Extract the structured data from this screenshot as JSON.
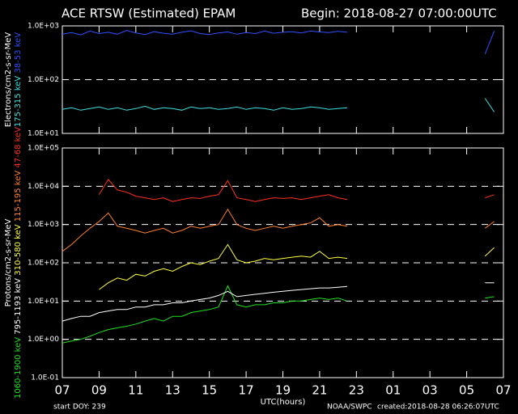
{
  "header": {
    "title": "ACE RTSW (Estimated) EPAM",
    "begin": "Begin: 2018-08-27 07:00:00UTC"
  },
  "footer": {
    "start": "start DOY: 239",
    "source": "NOAA/SWPC",
    "created": "created:2018-08-28 06:26:07UTC"
  },
  "chart_data": [
    {
      "type": "line",
      "y_label": "Electrons/cm2-s-sr-MeV",
      "log_y": true,
      "grid": true,
      "x": [
        0,
        0.5,
        1,
        1.5,
        2,
        2.5,
        3,
        3.5,
        4,
        4.5,
        5,
        5.5,
        6,
        6.5,
        7,
        7.5,
        8,
        8.5,
        9,
        9.5,
        10,
        10.5,
        11,
        11.5,
        12,
        12.5,
        13,
        13.5,
        14,
        14.5,
        15,
        15.5,
        19,
        23,
        23.5
      ],
      "xlim": [
        0,
        24
      ],
      "xticks": [
        {
          "value": 0,
          "label": "07"
        },
        {
          "value": 2,
          "label": "09"
        },
        {
          "value": 4,
          "label": "11"
        },
        {
          "value": 6,
          "label": "13"
        },
        {
          "value": 8,
          "label": "15"
        },
        {
          "value": 10,
          "label": "17"
        },
        {
          "value": 12,
          "label": "19"
        },
        {
          "value": 14,
          "label": "21"
        },
        {
          "value": 16,
          "label": "23"
        },
        {
          "value": 18,
          "label": "01"
        },
        {
          "value": 20,
          "label": "03"
        },
        {
          "value": 22,
          "label": "05"
        },
        {
          "value": 24,
          "label": "07"
        }
      ],
      "ylim": [
        10,
        1000
      ],
      "yticks": [
        {
          "value": 10,
          "label": "1.0E+01"
        },
        {
          "value": 100,
          "label": "1.0E+02"
        },
        {
          "value": 1000,
          "label": "1.0E+03"
        }
      ],
      "series": [
        {
          "name": "175-315 keV",
          "color": "#40e0e0",
          "values": [
            28,
            30,
            27,
            29,
            31,
            28,
            30,
            27,
            29,
            32,
            28,
            30,
            29,
            27,
            31,
            29,
            30,
            28,
            29,
            31,
            28,
            30,
            29,
            27,
            30,
            28,
            29,
            31,
            30,
            28,
            29,
            30,
            null,
            45,
            25
          ]
        },
        {
          "name": "38-53 keV",
          "color": "#3050ff",
          "values": [
            700,
            750,
            680,
            800,
            720,
            760,
            700,
            820,
            740,
            690,
            780,
            730,
            700,
            760,
            810,
            720,
            690,
            740,
            770,
            700,
            750,
            720,
            800,
            730,
            760,
            780,
            740,
            800,
            770,
            750,
            790,
            760,
            null,
            300,
            800
          ]
        }
      ]
    },
    {
      "type": "line",
      "y_label": "Protons/cm2-s-sr-MeV",
      "x_label": "UTC(hours)",
      "log_y": true,
      "grid": true,
      "x": [
        0,
        0.5,
        1,
        1.5,
        2,
        2.5,
        3,
        3.5,
        4,
        4.5,
        5,
        5.5,
        6,
        6.5,
        7,
        7.5,
        8,
        8.5,
        9,
        9.5,
        10,
        10.5,
        11,
        11.5,
        12,
        12.5,
        13,
        13.5,
        14,
        14.5,
        15,
        15.5,
        19,
        23,
        23.5
      ],
      "xlim": [
        0,
        24
      ],
      "xticks": [
        {
          "value": 0,
          "label": "07"
        },
        {
          "value": 2,
          "label": "09"
        },
        {
          "value": 4,
          "label": "11"
        },
        {
          "value": 6,
          "label": "13"
        },
        {
          "value": 8,
          "label": "15"
        },
        {
          "value": 10,
          "label": "17"
        },
        {
          "value": 12,
          "label": "19"
        },
        {
          "value": 14,
          "label": "21"
        },
        {
          "value": 16,
          "label": "23"
        },
        {
          "value": 18,
          "label": "01"
        },
        {
          "value": 20,
          "label": "03"
        },
        {
          "value": 22,
          "label": "05"
        },
        {
          "value": 24,
          "label": "07"
        }
      ],
      "ylim": [
        0.1,
        100000
      ],
      "yticks": [
        {
          "value": 0.1,
          "label": "1.0E-01"
        },
        {
          "value": 1,
          "label": "1.0E+00"
        },
        {
          "value": 10,
          "label": "1.0E+01"
        },
        {
          "value": 100,
          "label": "1.0E+02"
        },
        {
          "value": 1000,
          "label": "1.0E+03"
        },
        {
          "value": 10000,
          "label": "1.0E+04"
        },
        {
          "value": 100000,
          "label": "1.0E+05"
        }
      ],
      "series": [
        {
          "name": "1060-1900 keV",
          "color": "#20e020",
          "values": [
            0.8,
            0.9,
            1,
            1.2,
            1.5,
            1.8,
            2,
            2.2,
            2.5,
            3,
            3.5,
            3,
            4,
            4,
            5,
            5.5,
            6,
            7,
            25,
            8,
            7,
            8,
            8,
            9,
            9,
            10,
            10,
            11,
            12,
            11,
            12,
            10,
            null,
            12,
            13
          ]
        },
        {
          "name": "795-1193 keV",
          "color": "#ffffff",
          "values": [
            3,
            3.5,
            4,
            4,
            5,
            5.5,
            6,
            6,
            7,
            7,
            8,
            8,
            9,
            9,
            10,
            11,
            12,
            14,
            18,
            13,
            14,
            15,
            16,
            17,
            18,
            19,
            20,
            21,
            22,
            22,
            23,
            24,
            null,
            30,
            30
          ]
        },
        {
          "name": "310-580 keV",
          "color": "#ffff40",
          "values": [
            null,
            null,
            null,
            null,
            20,
            30,
            40,
            35,
            50,
            45,
            60,
            70,
            60,
            80,
            100,
            90,
            110,
            130,
            300,
            120,
            100,
            110,
            130,
            120,
            130,
            140,
            150,
            140,
            200,
            130,
            140,
            130,
            null,
            150,
            250
          ]
        },
        {
          "name": "115-195 keV",
          "color": "#ff8030",
          "values": [
            200,
            300,
            500,
            800,
            1200,
            2000,
            900,
            800,
            700,
            600,
            700,
            800,
            600,
            700,
            900,
            800,
            900,
            1000,
            2500,
            1000,
            800,
            700,
            800,
            900,
            800,
            900,
            1000,
            1100,
            1500,
            900,
            1000,
            900,
            null,
            800,
            1200
          ]
        },
        {
          "name": "47-68 keV",
          "color": "#ff3020",
          "values": [
            null,
            null,
            null,
            null,
            6000,
            15000,
            8000,
            7000,
            5500,
            5000,
            4500,
            5000,
            4000,
            4500,
            5000,
            4800,
            5500,
            6000,
            14000,
            5000,
            4500,
            4000,
            4500,
            5000,
            4800,
            5000,
            4500,
            5000,
            5500,
            6000,
            5000,
            4500,
            null,
            5000,
            6000
          ]
        }
      ]
    }
  ]
}
